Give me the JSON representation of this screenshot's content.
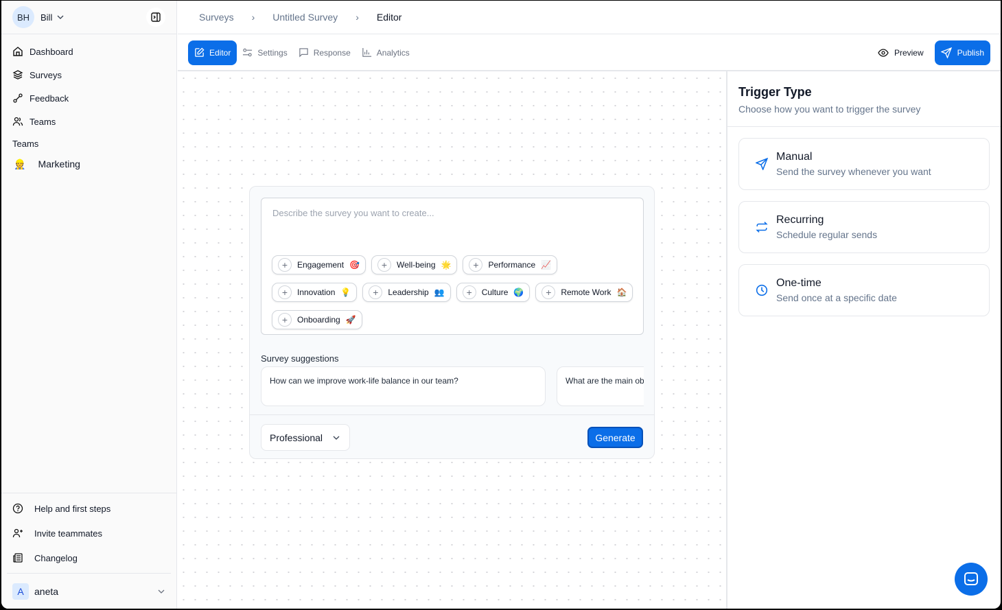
{
  "user": {
    "initials": "BH",
    "name": "Bill"
  },
  "sidebar": {
    "items": [
      {
        "label": "Dashboard",
        "icon": "home-icon"
      },
      {
        "label": "Surveys",
        "icon": "layers-icon"
      },
      {
        "label": "Feedback",
        "icon": "feedback-icon"
      },
      {
        "label": "Teams",
        "icon": "users-icon"
      }
    ],
    "teams_heading": "Teams",
    "teams": [
      {
        "label": "Marketing",
        "emoji": "👷"
      }
    ],
    "bottom": [
      {
        "label": "Help and first steps",
        "icon": "help-circle-icon"
      },
      {
        "label": "Invite teammates",
        "icon": "user-plus-icon"
      },
      {
        "label": "Changelog",
        "icon": "newspaper-icon"
      }
    ],
    "account": {
      "initial": "A",
      "name": "aneta"
    }
  },
  "breadcrumb": [
    "Surveys",
    "Untitled Survey",
    "Editor"
  ],
  "tabs": [
    {
      "label": "Editor",
      "active": true
    },
    {
      "label": "Settings"
    },
    {
      "label": "Response"
    },
    {
      "label": "Analytics"
    }
  ],
  "actions": {
    "preview": "Preview",
    "publish": "Publish"
  },
  "editor": {
    "placeholder": "Describe the survey you want to create...",
    "chips": [
      {
        "label": "Engagement",
        "emoji": "🎯"
      },
      {
        "label": "Well-being",
        "emoji": "🌟"
      },
      {
        "label": "Performance",
        "emoji": "📈"
      },
      {
        "label": "Innovation",
        "emoji": "💡"
      },
      {
        "label": "Leadership",
        "emoji": "👥"
      },
      {
        "label": "Culture",
        "emoji": "🌍"
      },
      {
        "label": "Remote Work",
        "emoji": "🏠"
      },
      {
        "label": "Onboarding",
        "emoji": "🚀"
      }
    ],
    "suggestions_label": "Survey suggestions",
    "suggestions": [
      "How can we improve work-life balance in our team?",
      "What are the main ob"
    ],
    "tone": "Professional",
    "generate": "Generate"
  },
  "trigger": {
    "title": "Trigger Type",
    "subtitle": "Choose how you want to trigger the survey",
    "options": [
      {
        "title": "Manual",
        "desc": "Send the survey whenever you want",
        "icon": "send-icon"
      },
      {
        "title": "Recurring",
        "desc": "Schedule regular sends",
        "icon": "repeat-icon"
      },
      {
        "title": "One-time",
        "desc": "Send once at a specific date",
        "icon": "clock-icon"
      }
    ]
  },
  "colors": {
    "accent": "#0b6ee8"
  }
}
